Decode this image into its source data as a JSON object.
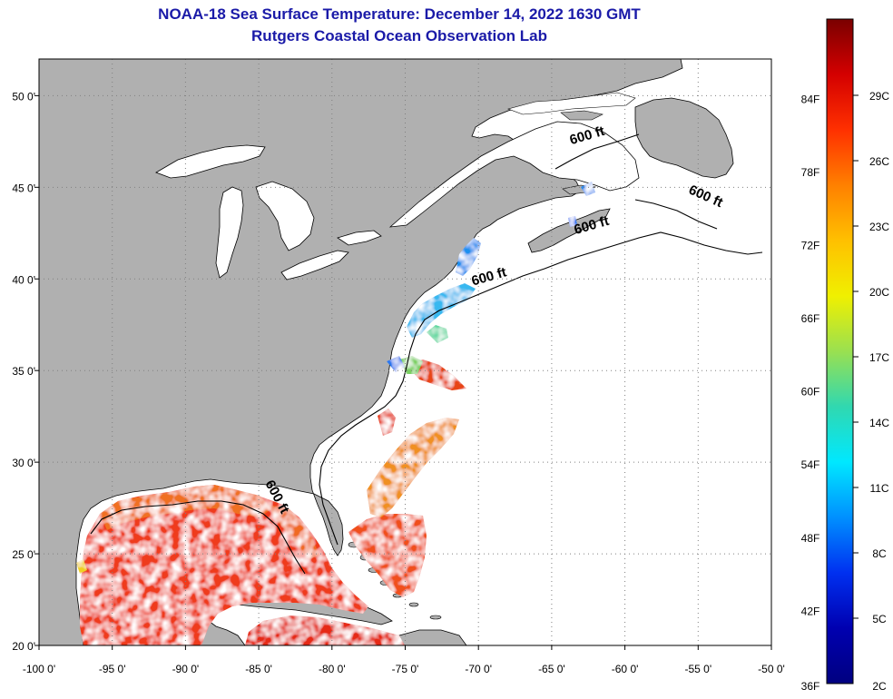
{
  "header": {
    "title": "NOAA-18 Sea Surface Temperature:  December 14, 2022 1630 GMT",
    "subtitle": "Rutgers Coastal Ocean Observation Lab"
  },
  "map": {
    "lon_range": [
      -100,
      -50
    ],
    "lat_range": [
      20,
      52
    ],
    "lon_ticks": [
      {
        "value": -100,
        "label": "-100 0'"
      },
      {
        "value": -95,
        "label": "-95 0'"
      },
      {
        "value": -90,
        "label": "-90 0'"
      },
      {
        "value": -85,
        "label": "-85 0'"
      },
      {
        "value": -80,
        "label": "-80 0'"
      },
      {
        "value": -75,
        "label": "-75 0'"
      },
      {
        "value": -70,
        "label": "-70 0'"
      },
      {
        "value": -65,
        "label": "-65 0'"
      },
      {
        "value": -60,
        "label": "-60 0'"
      },
      {
        "value": -55,
        "label": "-55 0'"
      },
      {
        "value": -50,
        "label": "-50 0'"
      }
    ],
    "lat_ticks": [
      {
        "value": 20,
        "label": "20 0'"
      },
      {
        "value": 25,
        "label": "25 0'"
      },
      {
        "value": 30,
        "label": "30 0'"
      },
      {
        "value": 35,
        "label": "35 0'"
      },
      {
        "value": 40,
        "label": "40 0'"
      },
      {
        "value": 45,
        "label": "45 0'"
      },
      {
        "value": 50,
        "label": "50 0'"
      }
    ],
    "isobath_labels": [
      {
        "text": "600 ft",
        "lon": -62.5,
        "lat": 47.6
      },
      {
        "text": "600 ft",
        "lon": -54.6,
        "lat": 44.3
      },
      {
        "text": "600 ft",
        "lon": -62.2,
        "lat": 42.7
      },
      {
        "text": "600 ft",
        "lon": -69.2,
        "lat": 39.9
      },
      {
        "text": "600 ft",
        "lon": -84.0,
        "lat": 28.0
      }
    ],
    "colors": {
      "land": "#b0b0b0",
      "water_nodata": "#ffffff",
      "grid": "#808080"
    }
  },
  "colorbar": {
    "min_label_f": "36F",
    "min_label_c": "2C",
    "f_ticks": [
      "84F",
      "78F",
      "72F",
      "66F",
      "60F",
      "54F",
      "48F",
      "42F"
    ],
    "c_ticks": [
      "29C",
      "26C",
      "23C",
      "20C",
      "17C",
      "14C",
      "11C",
      "8C",
      "5C"
    ],
    "gradient": [
      "#7a0000",
      "#d40000",
      "#ff3000",
      "#ff8000",
      "#ffc000",
      "#f0f000",
      "#9ae050",
      "#30d8b0",
      "#00e8ff",
      "#0090ff",
      "#0030f0",
      "#0000b0",
      "#000080"
    ]
  }
}
